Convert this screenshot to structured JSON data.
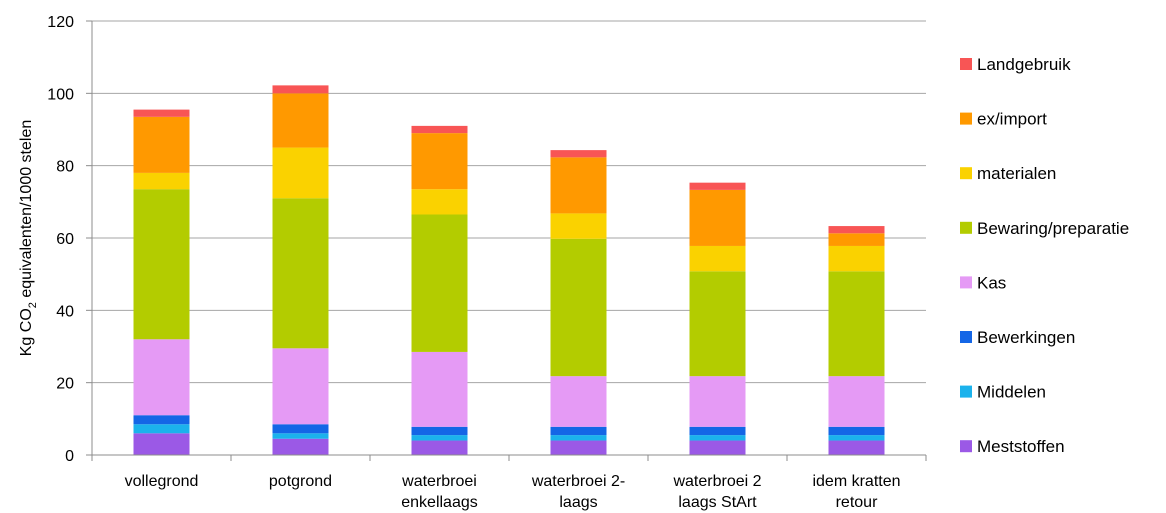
{
  "chart_data": {
    "type": "bar",
    "stacked": true,
    "ylabel": {
      "prefix": "Kg CO",
      "sub": "2",
      "suffix": " equivalenten/1000 stelen"
    },
    "ylim": [
      0,
      120
    ],
    "yticks": [
      0,
      20,
      40,
      60,
      80,
      100,
      120
    ],
    "grid": true,
    "legend_position": "right",
    "categories": [
      [
        "vollegrond"
      ],
      [
        "potgrond"
      ],
      [
        "waterbroei",
        "enkellaags"
      ],
      [
        "waterbroei 2-",
        "laags"
      ],
      [
        "waterbroei 2",
        "laags StArt"
      ],
      [
        "idem kratten",
        "retour"
      ]
    ],
    "series": [
      {
        "name": "Meststoffen",
        "color": "#9b59e6",
        "values": [
          6,
          4.5,
          4,
          4,
          4,
          4
        ]
      },
      {
        "name": "Middelen",
        "color": "#1bb2ec",
        "values": [
          2.5,
          1.5,
          1.5,
          1.5,
          1.5,
          1.5
        ]
      },
      {
        "name": "Bewerkingen",
        "color": "#1466e6",
        "values": [
          2.5,
          2.5,
          2.3,
          2.3,
          2.3,
          2.3
        ]
      },
      {
        "name": "Kas",
        "color": "#e59af5",
        "values": [
          21,
          21,
          20.7,
          14,
          14,
          14
        ]
      },
      {
        "name": "Bewaring/preparatie",
        "color": "#b3cc00",
        "values": [
          41.5,
          41.5,
          38,
          38,
          29,
          29
        ]
      },
      {
        "name": "materialen",
        "color": "#fad200",
        "values": [
          4.5,
          14,
          7,
          7,
          7,
          7
        ]
      },
      {
        "name": "ex/import",
        "color": "#ff9900",
        "values": [
          15.5,
          15,
          15.5,
          15.5,
          15.5,
          3.5
        ]
      },
      {
        "name": "Landgebruik",
        "color": "#f85555",
        "values": [
          2,
          2.2,
          2,
          2,
          2,
          2
        ]
      }
    ]
  }
}
